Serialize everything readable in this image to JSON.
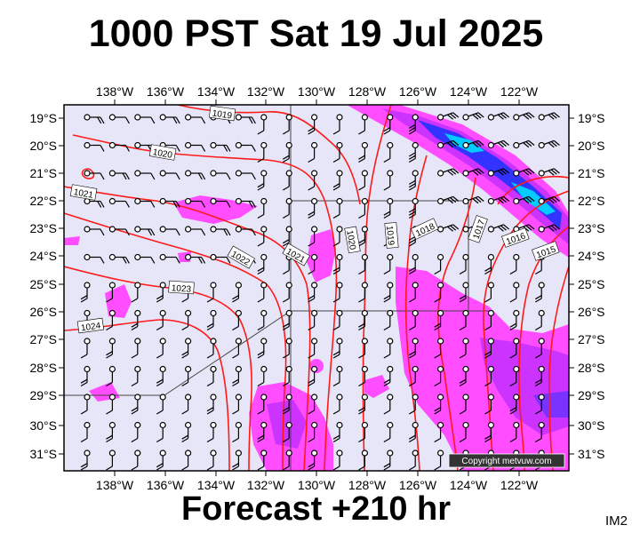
{
  "title": "1000 PST Sat 19 Jul 2025",
  "footer": "Forecast +210 hr",
  "image_code": "IM2",
  "copyright": "Copyright metvuw.com",
  "colors": {
    "ocean": "#e6e6f8",
    "isobar": "#ff1a1a",
    "rain_light": "#ff4dff",
    "rain_mid": "#cc33ff",
    "rain_heavy": "#3333ff",
    "rain_extreme": "#00ccff",
    "grid": "#444444"
  },
  "map": {
    "lon_labels": [
      "138°W",
      "136°W",
      "134°W",
      "132°W",
      "130°W",
      "128°W",
      "126°W",
      "124°W",
      "122°W"
    ],
    "lat_labels": [
      "19°S",
      "20°S",
      "21°S",
      "22°S",
      "23°S",
      "24°S",
      "25°S",
      "26°S",
      "27°S",
      "28°S",
      "29°S",
      "30°S",
      "31°S"
    ],
    "isobar_labels": [
      "1019",
      "1020",
      "1021",
      "1021",
      "1022",
      "1023",
      "1024",
      "1020",
      "1020",
      "1019",
      "1018",
      "1017",
      "1016",
      "1015"
    ]
  }
}
